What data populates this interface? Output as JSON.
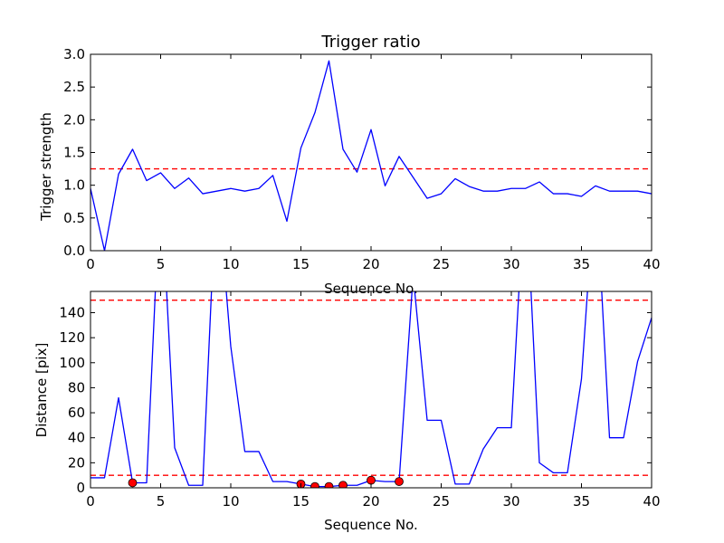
{
  "chart_data": [
    {
      "type": "line",
      "title": "Trigger ratio",
      "xlabel": "Sequence No.",
      "ylabel": "Trigger strength",
      "xlim": [
        0,
        40
      ],
      "ylim": [
        0.0,
        3.0
      ],
      "x_ticks": [
        "0",
        "5",
        "10",
        "15",
        "20",
        "25",
        "30",
        "35",
        "40"
      ],
      "y_ticks": [
        "0.0",
        "0.5",
        "1.0",
        "1.5",
        "2.0",
        "2.5",
        "3.0"
      ],
      "x_tick_values": [
        0,
        5,
        10,
        15,
        20,
        25,
        30,
        35,
        40
      ],
      "y_tick_values": [
        0,
        0.5,
        1.0,
        1.5,
        2.0,
        2.5,
        3.0
      ],
      "threshold_lines": [
        1.25
      ],
      "line_color": "#0000ff",
      "threshold_color": "#ff0000",
      "series": [
        {
          "x": [
            0,
            1,
            2,
            3,
            4,
            5,
            6,
            7,
            8,
            9,
            10,
            11,
            12,
            13,
            14,
            15,
            16,
            17,
            18,
            19,
            20,
            21,
            22,
            23,
            24,
            25,
            26,
            27,
            28,
            29,
            30,
            31,
            32,
            33,
            34,
            35,
            36,
            37,
            38,
            39,
            40
          ],
          "values": [
            0.95,
            0.0,
            1.17,
            1.55,
            1.07,
            1.19,
            0.95,
            1.11,
            0.87,
            0.91,
            0.95,
            0.91,
            0.95,
            1.15,
            0.45,
            1.57,
            2.11,
            2.9,
            1.55,
            1.2,
            1.85,
            0.99,
            1.44,
            1.12,
            0.8,
            0.87,
            1.1,
            0.98,
            0.91,
            0.91,
            0.95,
            0.95,
            1.05,
            0.87,
            0.87,
            0.83,
            0.99,
            0.91,
            0.91,
            0.91,
            0.87
          ]
        }
      ]
    },
    {
      "type": "line",
      "xlabel": "Sequence No.",
      "ylabel": "Distance [pix]",
      "xlim": [
        0,
        40
      ],
      "ylim": [
        0,
        157
      ],
      "x_ticks": [
        "0",
        "5",
        "10",
        "15",
        "20",
        "25",
        "30",
        "35",
        "40"
      ],
      "y_ticks": [
        "0",
        "20",
        "40",
        "60",
        "80",
        "100",
        "120",
        "140"
      ],
      "x_tick_values": [
        0,
        5,
        10,
        15,
        20,
        25,
        30,
        35,
        40
      ],
      "y_tick_values": [
        0,
        20,
        40,
        60,
        80,
        100,
        120,
        140
      ],
      "threshold_lines": [
        10,
        150
      ],
      "line_color": "#0000ff",
      "threshold_color": "#ff0000",
      "marker_color": "#ff0000",
      "series": [
        {
          "x": [
            0,
            1,
            2,
            3,
            4,
            5,
            6,
            7,
            8,
            9,
            10,
            11,
            12,
            13,
            14,
            15,
            16,
            17,
            18,
            19,
            20,
            21,
            22,
            23,
            24,
            25,
            26,
            27,
            28,
            29,
            30,
            31,
            32,
            33,
            34,
            35,
            36,
            37,
            38,
            39,
            40
          ],
          "values": [
            8,
            8,
            72,
            4,
            4,
            250,
            32,
            2,
            2,
            250,
            113,
            29,
            29,
            5,
            5,
            3,
            1,
            1,
            2,
            2,
            6,
            5,
            5,
            170,
            54,
            54,
            3,
            3,
            31,
            48,
            48,
            250,
            20,
            12,
            12,
            87,
            250,
            40,
            40,
            101,
            136
          ]
        }
      ],
      "markers": {
        "x": [
          3,
          15,
          16,
          17,
          18,
          20,
          22
        ],
        "values": [
          4,
          3,
          1,
          1,
          2,
          6,
          5
        ]
      }
    }
  ]
}
